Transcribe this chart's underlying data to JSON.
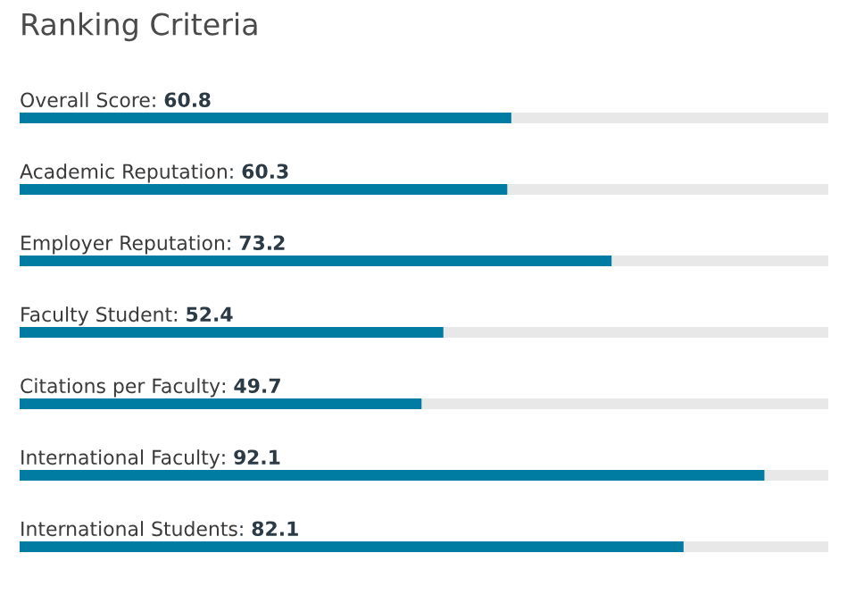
{
  "chart_data": {
    "type": "bar",
    "orientation": "horizontal",
    "title": "Ranking Criteria",
    "categories": [
      "Overall Score",
      "Academic Reputation",
      "Employer Reputation",
      "Faculty Student",
      "Citations per Faculty",
      "International Faculty",
      "International Students"
    ],
    "series": [
      {
        "color": "#007ba1",
        "values": [
          60.8,
          60.3,
          73.2,
          52.4,
          49.7,
          92.1,
          82.1
        ],
        "value_labels": [
          ": 60.8",
          ": 60.3",
          ": 73.2",
          ": 52.4",
          ": 49.7",
          ": 92.1",
          ": 82.1"
        ]
      }
    ],
    "xlim": [
      0,
      100
    ],
    "tick_labels": false
  }
}
